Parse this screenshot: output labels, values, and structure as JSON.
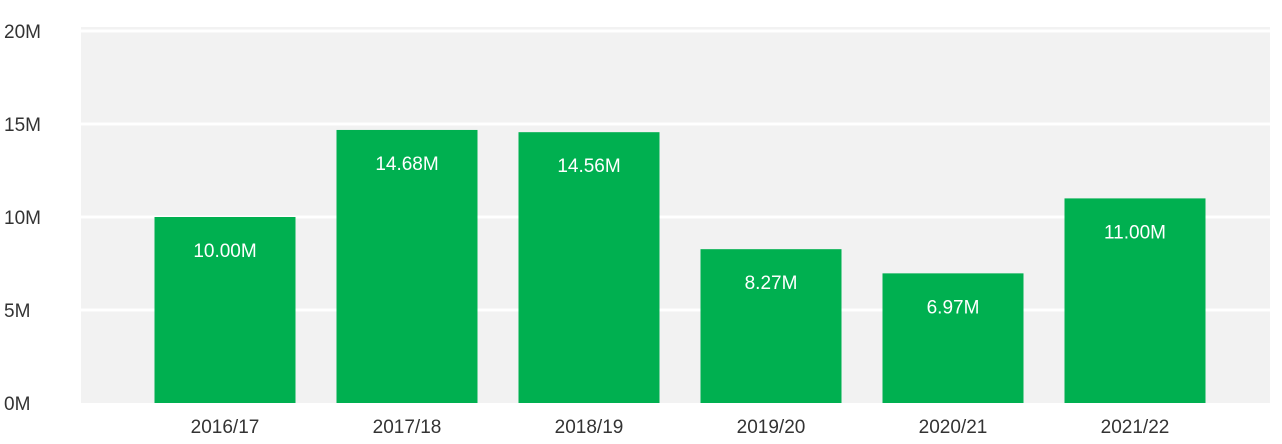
{
  "chart_data": {
    "type": "bar",
    "title": "",
    "xlabel": "",
    "ylabel": "",
    "categories": [
      "2016/17",
      "2017/18",
      "2018/19",
      "2019/20",
      "2020/21",
      "2021/22"
    ],
    "values": [
      10.0,
      14.68,
      14.56,
      8.27,
      6.97,
      11.0
    ],
    "data_labels": [
      "10.00M",
      "14.68M",
      "14.56M",
      "8.27M",
      "6.97M",
      "11.00M"
    ],
    "unit": "M",
    "ylim": [
      0,
      20
    ],
    "yticks": [
      0,
      5,
      10,
      15,
      20
    ],
    "ytick_labels": [
      "0M",
      "5M",
      "10M",
      "15M",
      "20M"
    ],
    "grid": true,
    "colors": {
      "bar": "#00b050",
      "plot_bg": "#f2f2f2",
      "grid": "#ffffff",
      "label": "#ffffff",
      "axis_text": "#333333"
    }
  }
}
